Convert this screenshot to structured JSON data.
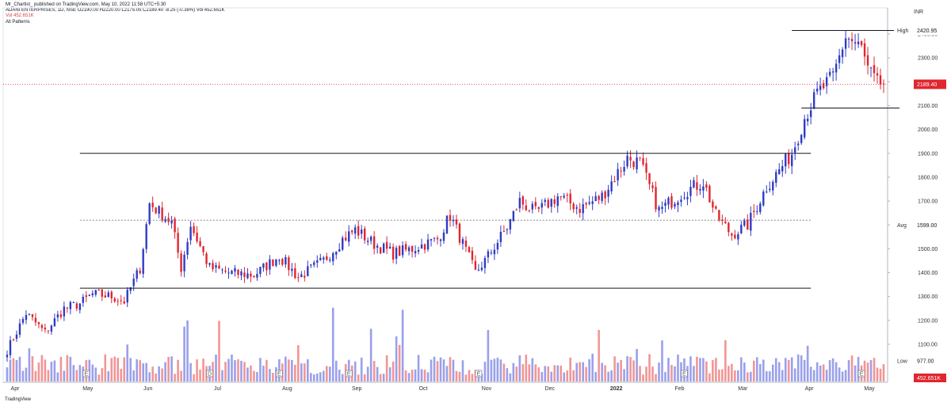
{
  "header": {
    "published": "Mr_Chartist_ published on TradingView.com, May 10, 2022 11:58 UTC+5:30",
    "symbol_line": "ADANI ENTERPRISES, 1D, NSE  O2190.00 H2220.00 L2175.05 C2189.40 -8.25 (-0.38%) Vol 452.651K",
    "vol_line": "Vol 452.651K",
    "indicator": "All Patterns"
  },
  "axis_title": "INR",
  "footer": "TradingView",
  "tags": {
    "high": {
      "label": "High",
      "value": "2420.95"
    },
    "last": {
      "value": "2189.40"
    },
    "avg": {
      "label": "Avg",
      "value": "1599.00"
    },
    "low": {
      "label": "Low",
      "value": "977.00"
    },
    "vol": {
      "value": "452.651K"
    }
  },
  "colors": {
    "up": "#2f3cc4",
    "down": "#e0262f",
    "vol_up": "#8f96e8",
    "vol_down": "#f08a8a",
    "last": "#e0262f",
    "grid": "#f0f3fa"
  },
  "events": [
    "E",
    "E",
    "D",
    "E",
    "E",
    "E",
    "E"
  ],
  "chart_data": {
    "type": "candlestick",
    "y_axis": {
      "min": 1000,
      "max": 2500,
      "ticks": [
        1100,
        1200,
        1300,
        1400,
        1500,
        1600,
        1700,
        1800,
        1900,
        2000,
        2100,
        2200,
        2300,
        2400
      ],
      "tick_labels": [
        "1100.00",
        "1200.00",
        "1300.00",
        "1400.00",
        "1500.00",
        "1600.00",
        "1700.00",
        "1800.00",
        "1900.00",
        "2000.00",
        "2100.00",
        "2200.00",
        "2300.00",
        "2400.00"
      ]
    },
    "x_labels": [
      "Apr",
      "May",
      "Jun",
      "Jul",
      "Aug",
      "Sep",
      "Oct",
      "Nov",
      "Dec",
      "2022",
      "Feb",
      "Mar",
      "Apr",
      "May"
    ],
    "x_label_day": [
      0,
      23,
      42,
      64,
      86,
      108,
      129,
      149,
      169,
      190,
      210,
      230,
      251,
      270
    ],
    "horizontal_lines": [
      {
        "price": 2415,
        "start_day": 248,
        "end_day": 282,
        "style": "solid"
      },
      {
        "price": 2090,
        "start_day": 251,
        "end_day": 282,
        "style": "solid"
      },
      {
        "price": 1900,
        "start_day": 23,
        "end_day": 254,
        "style": "solid"
      },
      {
        "price": 1620,
        "start_day": 23,
        "end_day": 254,
        "style": "dotted"
      },
      {
        "price": 1335,
        "start_day": 23,
        "end_day": 254,
        "style": "solid"
      }
    ],
    "last_price": 2189.4,
    "anchors": [
      [
        0,
        1075
      ],
      [
        6,
        1230
      ],
      [
        12,
        1150
      ],
      [
        18,
        1250
      ],
      [
        23,
        1270
      ],
      [
        27,
        1310
      ],
      [
        33,
        1300
      ],
      [
        37,
        1280
      ],
      [
        42,
        1420
      ],
      [
        45,
        1690
      ],
      [
        52,
        1610
      ],
      [
        55,
        1420
      ],
      [
        58,
        1600
      ],
      [
        64,
        1420
      ],
      [
        70,
        1400
      ],
      [
        78,
        1390
      ],
      [
        86,
        1470
      ],
      [
        92,
        1380
      ],
      [
        100,
        1450
      ],
      [
        106,
        1540
      ],
      [
        110,
        1580
      ],
      [
        116,
        1520
      ],
      [
        122,
        1480
      ],
      [
        128,
        1500
      ],
      [
        136,
        1540
      ],
      [
        140,
        1640
      ],
      [
        148,
        1400
      ],
      [
        151,
        1450
      ],
      [
        158,
        1590
      ],
      [
        162,
        1700
      ],
      [
        167,
        1650
      ],
      [
        174,
        1720
      ],
      [
        181,
        1670
      ],
      [
        188,
        1720
      ],
      [
        196,
        1880
      ],
      [
        200,
        1860
      ],
      [
        206,
        1660
      ],
      [
        214,
        1740
      ],
      [
        220,
        1780
      ],
      [
        224,
        1640
      ],
      [
        229,
        1560
      ],
      [
        234,
        1600
      ],
      [
        240,
        1760
      ],
      [
        248,
        1900
      ],
      [
        252,
        2050
      ],
      [
        256,
        2150
      ],
      [
        261,
        2220
      ],
      [
        265,
        2390
      ],
      [
        270,
        2340
      ],
      [
        272,
        2250
      ],
      [
        275,
        2189
      ]
    ],
    "volume": {
      "max_million": 4.0,
      "last": "452.651K"
    }
  }
}
